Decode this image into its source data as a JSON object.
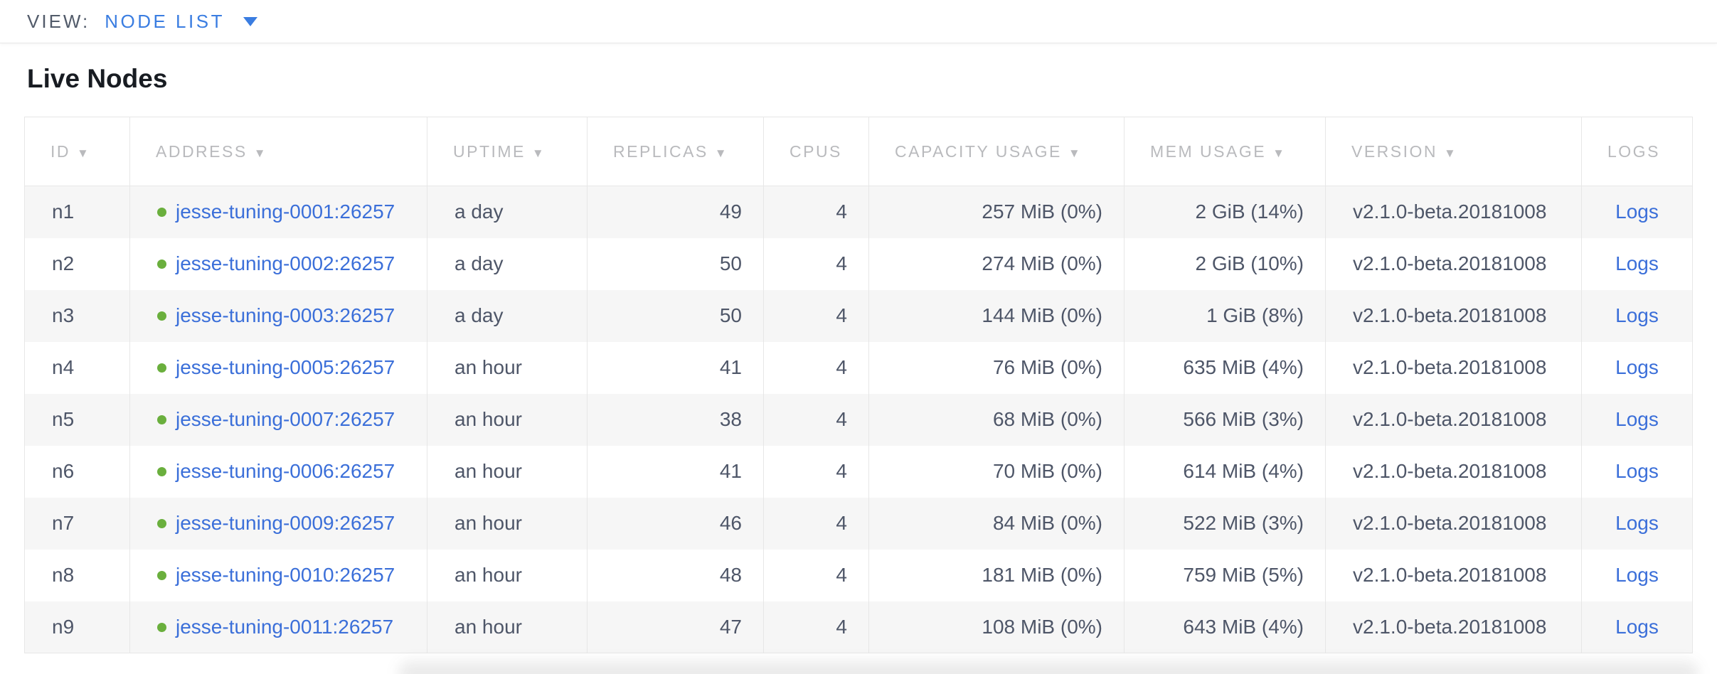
{
  "view_bar": {
    "label": "VIEW:",
    "selected": "NODE LIST"
  },
  "page": {
    "title": "Live Nodes"
  },
  "table": {
    "columns": [
      {
        "key": "id",
        "label": "ID",
        "sortable": true,
        "align": "left"
      },
      {
        "key": "address",
        "label": "ADDRESS",
        "sortable": true,
        "align": "left"
      },
      {
        "key": "uptime",
        "label": "UPTIME",
        "sortable": true,
        "align": "left"
      },
      {
        "key": "replicas",
        "label": "REPLICAS",
        "sortable": true,
        "align": "right"
      },
      {
        "key": "cpus",
        "label": "CPUS",
        "sortable": false,
        "align": "right"
      },
      {
        "key": "capacity",
        "label": "CAPACITY USAGE",
        "sortable": true,
        "align": "right"
      },
      {
        "key": "mem",
        "label": "MEM USAGE",
        "sortable": true,
        "align": "right"
      },
      {
        "key": "version",
        "label": "VERSION",
        "sortable": true,
        "align": "left"
      },
      {
        "key": "logs",
        "label": "LOGS",
        "sortable": false,
        "align": "center"
      }
    ],
    "rows": [
      {
        "id": "n1",
        "address": "jesse-tuning-0001:26257",
        "status": "live",
        "uptime": "a day",
        "replicas": "49",
        "cpus": "4",
        "capacity": "257 MiB (0%)",
        "mem": "2 GiB (14%)",
        "version": "v2.1.0-beta.20181008",
        "logs": "Logs"
      },
      {
        "id": "n2",
        "address": "jesse-tuning-0002:26257",
        "status": "live",
        "uptime": "a day",
        "replicas": "50",
        "cpus": "4",
        "capacity": "274 MiB (0%)",
        "mem": "2 GiB (10%)",
        "version": "v2.1.0-beta.20181008",
        "logs": "Logs"
      },
      {
        "id": "n3",
        "address": "jesse-tuning-0003:26257",
        "status": "live",
        "uptime": "a day",
        "replicas": "50",
        "cpus": "4",
        "capacity": "144 MiB (0%)",
        "mem": "1 GiB (8%)",
        "version": "v2.1.0-beta.20181008",
        "logs": "Logs"
      },
      {
        "id": "n4",
        "address": "jesse-tuning-0005:26257",
        "status": "live",
        "uptime": "an hour",
        "replicas": "41",
        "cpus": "4",
        "capacity": "76 MiB (0%)",
        "mem": "635 MiB (4%)",
        "version": "v2.1.0-beta.20181008",
        "logs": "Logs"
      },
      {
        "id": "n5",
        "address": "jesse-tuning-0007:26257",
        "status": "live",
        "uptime": "an hour",
        "replicas": "38",
        "cpus": "4",
        "capacity": "68 MiB (0%)",
        "mem": "566 MiB (3%)",
        "version": "v2.1.0-beta.20181008",
        "logs": "Logs"
      },
      {
        "id": "n6",
        "address": "jesse-tuning-0006:26257",
        "status": "live",
        "uptime": "an hour",
        "replicas": "41",
        "cpus": "4",
        "capacity": "70 MiB (0%)",
        "mem": "614 MiB (4%)",
        "version": "v2.1.0-beta.20181008",
        "logs": "Logs"
      },
      {
        "id": "n7",
        "address": "jesse-tuning-0009:26257",
        "status": "live",
        "uptime": "an hour",
        "replicas": "46",
        "cpus": "4",
        "capacity": "84 MiB (0%)",
        "mem": "522 MiB (3%)",
        "version": "v2.1.0-beta.20181008",
        "logs": "Logs"
      },
      {
        "id": "n8",
        "address": "jesse-tuning-0010:26257",
        "status": "live",
        "uptime": "an hour",
        "replicas": "48",
        "cpus": "4",
        "capacity": "181 MiB (0%)",
        "mem": "759 MiB (5%)",
        "version": "v2.1.0-beta.20181008",
        "logs": "Logs"
      },
      {
        "id": "n9",
        "address": "jesse-tuning-0011:26257",
        "status": "live",
        "uptime": "an hour",
        "replicas": "47",
        "cpus": "4",
        "capacity": "108 MiB (0%)",
        "mem": "643 MiB (4%)",
        "version": "v2.1.0-beta.20181008",
        "logs": "Logs"
      }
    ]
  },
  "icons": {
    "sort_desc": "▼",
    "caret_down": "caret-down-icon",
    "live_status": "live-status-dot-icon"
  },
  "colors": {
    "link": "#3b6fd9",
    "accent_blue": "#3a7de1",
    "live_green": "#6aaf3d",
    "header_text": "#b9babd",
    "body_text": "#4e5668",
    "title_text": "#181c22",
    "view_label_text": "#525b6a",
    "row_alt_bg": "#f6f6f6",
    "border": "#e7e7e7"
  }
}
